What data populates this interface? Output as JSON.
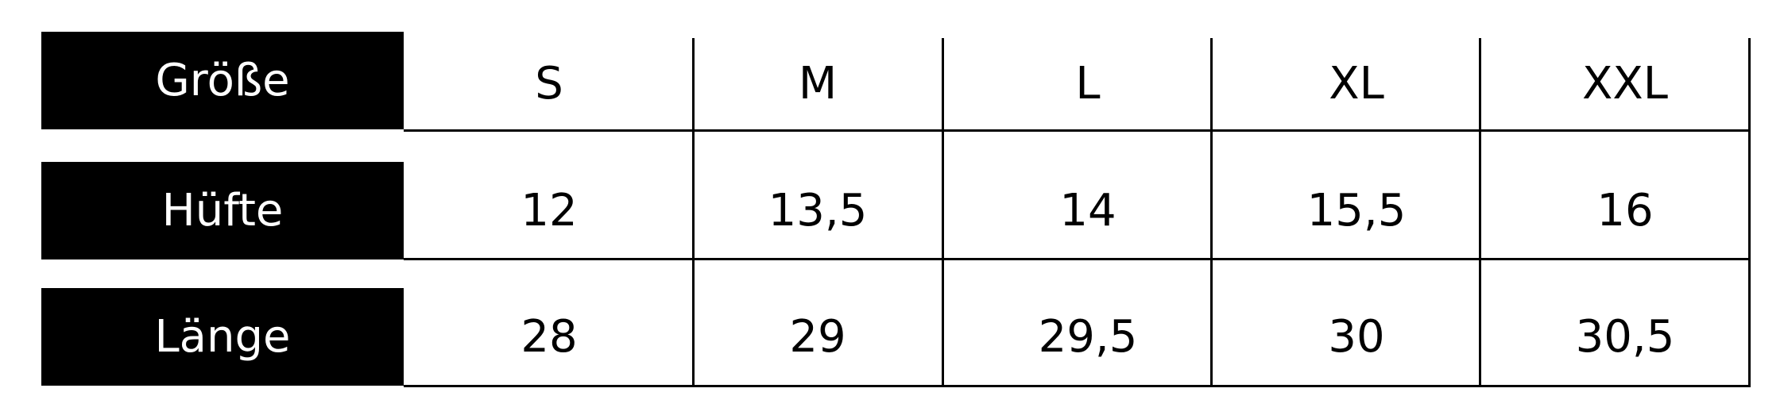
{
  "table": {
    "row_headers": [
      "Größe",
      "Hüfte",
      "Länge"
    ],
    "rows": [
      [
        "S",
        "M",
        "L",
        "XL",
        "XXL"
      ],
      [
        "12",
        "13,5",
        "14",
        "15,5",
        "16"
      ],
      [
        "28",
        "29",
        "29,5",
        "30",
        "30,5"
      ]
    ]
  },
  "colors": {
    "header_bg": "#000000",
    "header_text": "#ffffff",
    "line": "#000000"
  }
}
